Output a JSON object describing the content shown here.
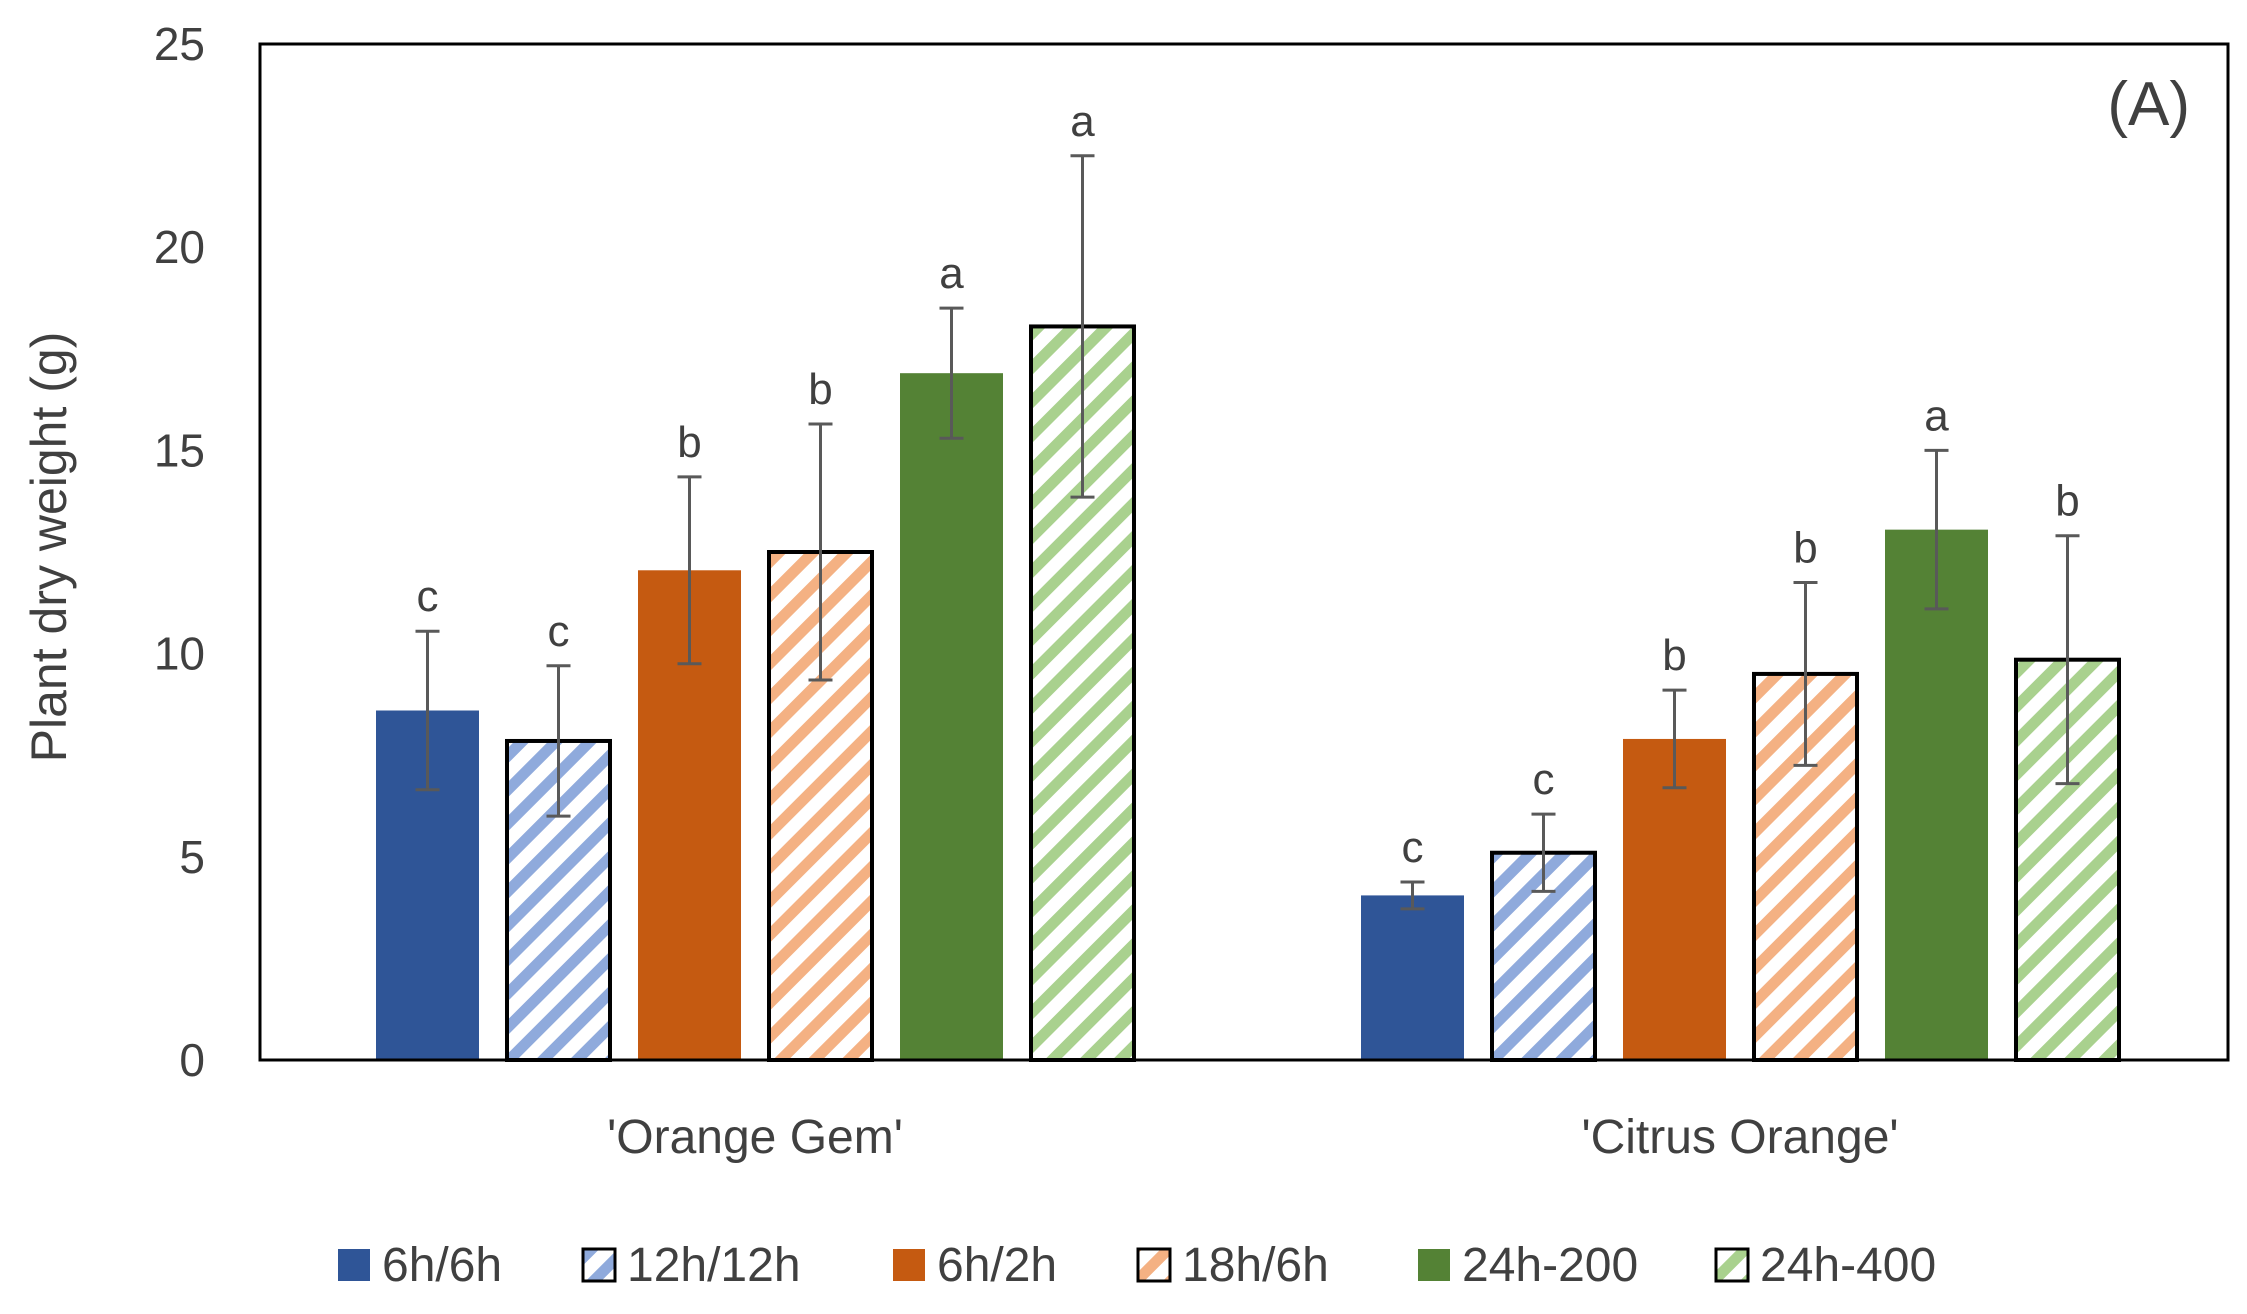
{
  "chart_data": {
    "type": "bar",
    "panel_label": "(A)",
    "title": "",
    "xlabel": "",
    "ylabel": "Plant dry weight (g)",
    "ylim": [
      0,
      25
    ],
    "yticks": [
      0,
      5,
      10,
      15,
      20,
      25
    ],
    "grid": false,
    "legend_position": "bottom",
    "categories": [
      "'Orange Gem'",
      "'Citrus Orange'"
    ],
    "series": [
      {
        "name": "6h/6h",
        "color": "#2F5597",
        "pattern": "solid",
        "values": [
          8.6,
          4.05
        ],
        "errors": [
          1.95,
          0.33
        ],
        "letters": [
          "c",
          "c"
        ]
      },
      {
        "name": "12h/12h",
        "color": "#8FAADC",
        "pattern": "hatched",
        "values": [
          7.85,
          5.1
        ],
        "errors": [
          1.85,
          0.95
        ],
        "letters": [
          "c",
          "c"
        ]
      },
      {
        "name": "6h/2h",
        "color": "#C55A11",
        "pattern": "solid",
        "values": [
          12.05,
          7.9
        ],
        "errors": [
          2.3,
          1.2
        ],
        "letters": [
          "b",
          "b"
        ]
      },
      {
        "name": "18h/6h",
        "color": "#F4B183",
        "pattern": "hatched",
        "values": [
          12.5,
          9.5
        ],
        "errors": [
          3.15,
          2.25
        ],
        "letters": [
          "b",
          "b"
        ]
      },
      {
        "name": "24h-200",
        "color": "#548235",
        "pattern": "solid",
        "values": [
          16.9,
          13.05
        ],
        "errors": [
          1.6,
          1.95
        ],
        "letters": [
          "a",
          "a"
        ]
      },
      {
        "name": "24h-400",
        "color": "#A9D18E",
        "pattern": "hatched",
        "values": [
          18.05,
          9.85
        ],
        "errors": [
          4.2,
          3.05
        ],
        "letters": [
          "a",
          "b"
        ]
      }
    ]
  }
}
